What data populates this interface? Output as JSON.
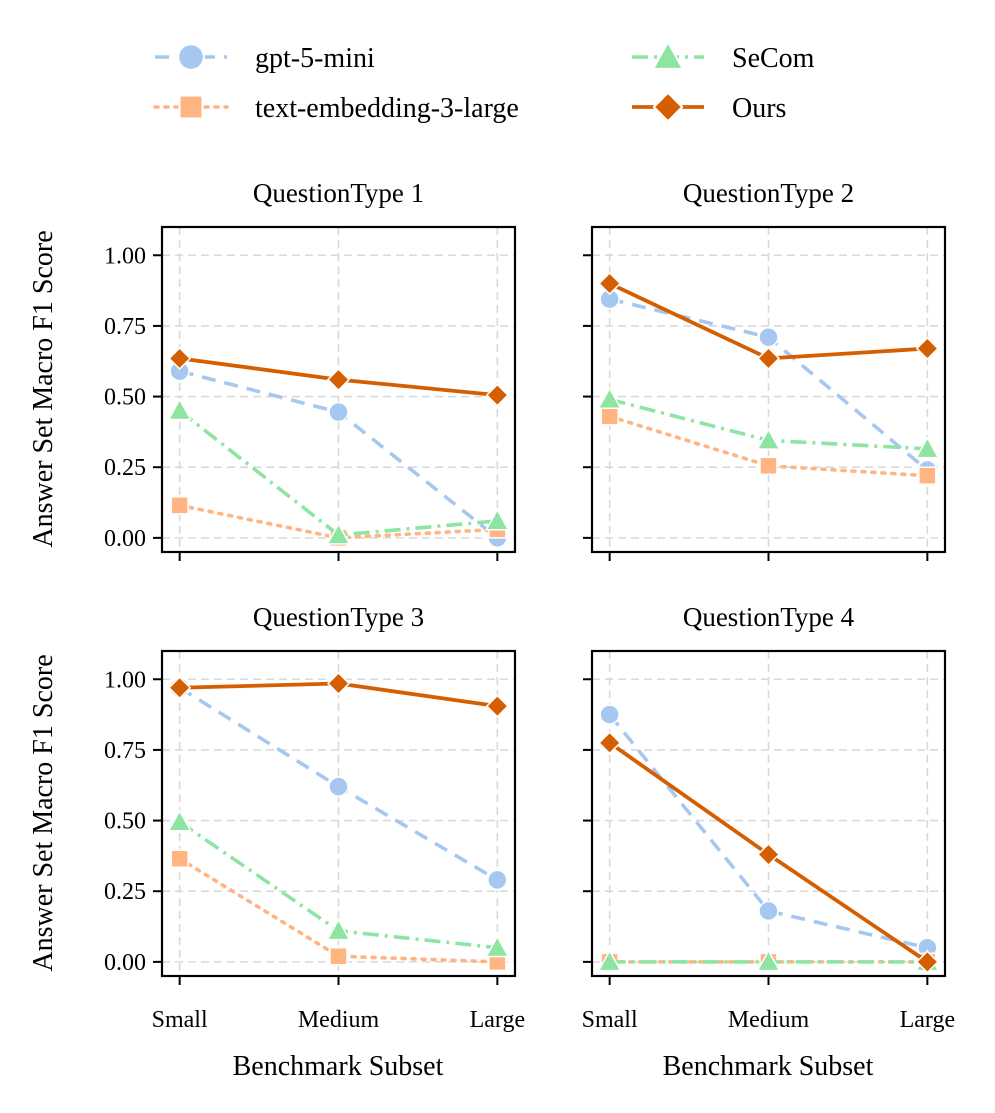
{
  "chart_data": {
    "type": "line",
    "ylabel": "Answer Set Macro F1 Score",
    "xlabel": "Benchmark Subset",
    "categories": [
      "Small",
      "Medium",
      "Large"
    ],
    "ylim": [
      -0.05,
      1.1
    ],
    "yticks": [
      0.0,
      0.25,
      0.5,
      0.75,
      1.0
    ],
    "ytick_labels": [
      "0.00",
      "0.25",
      "0.50",
      "0.75",
      "1.00"
    ],
    "grid": true,
    "legend": {
      "placement": "top",
      "entries": [
        {
          "name": "gpt-5-mini",
          "color": "#a6c8f0",
          "marker": "circle",
          "linestyle": "dashed"
        },
        {
          "name": "text-embedding-3-large",
          "color": "#ffb482",
          "marker": "square",
          "linestyle": "dotted"
        },
        {
          "name": "SeCom",
          "color": "#8de5a1",
          "marker": "triangle",
          "linestyle": "dashdot"
        },
        {
          "name": "Ours",
          "color": "#d55e00",
          "marker": "diamond",
          "linestyle": "solid"
        }
      ]
    },
    "panels": [
      {
        "title": "QuestionType 1",
        "series": [
          {
            "name": "gpt-5-mini",
            "values": [
              0.59,
              0.445,
              0.0
            ]
          },
          {
            "name": "text-embedding-3-large",
            "values": [
              0.115,
              0.0,
              0.03
            ]
          },
          {
            "name": "SeCom",
            "values": [
              0.45,
              0.01,
              0.06
            ]
          },
          {
            "name": "Ours",
            "values": [
              0.635,
              0.56,
              0.505
            ]
          }
        ]
      },
      {
        "title": "QuestionType 2",
        "series": [
          {
            "name": "gpt-5-mini",
            "values": [
              0.845,
              0.71,
              0.24
            ]
          },
          {
            "name": "text-embedding-3-large",
            "values": [
              0.43,
              0.255,
              0.22
            ]
          },
          {
            "name": "SeCom",
            "values": [
              0.49,
              0.345,
              0.315
            ]
          },
          {
            "name": "Ours",
            "values": [
              0.9,
              0.635,
              0.67
            ]
          }
        ]
      },
      {
        "title": "QuestionType 3",
        "series": [
          {
            "name": "gpt-5-mini",
            "values": [
              0.97,
              0.62,
              0.29
            ]
          },
          {
            "name": "text-embedding-3-large",
            "values": [
              0.365,
              0.02,
              0.0
            ]
          },
          {
            "name": "SeCom",
            "values": [
              0.495,
              0.11,
              0.05
            ]
          },
          {
            "name": "Ours",
            "values": [
              0.97,
              0.985,
              0.905
            ]
          }
        ]
      },
      {
        "title": "QuestionType 4",
        "series": [
          {
            "name": "gpt-5-mini",
            "values": [
              0.875,
              0.18,
              0.05
            ]
          },
          {
            "name": "text-embedding-3-large",
            "values": [
              0.0,
              0.0,
              0.0
            ]
          },
          {
            "name": "SeCom",
            "values": [
              0.0,
              0.0,
              0.0
            ]
          },
          {
            "name": "Ours",
            "values": [
              0.775,
              0.38,
              0.0
            ]
          }
        ]
      }
    ]
  }
}
